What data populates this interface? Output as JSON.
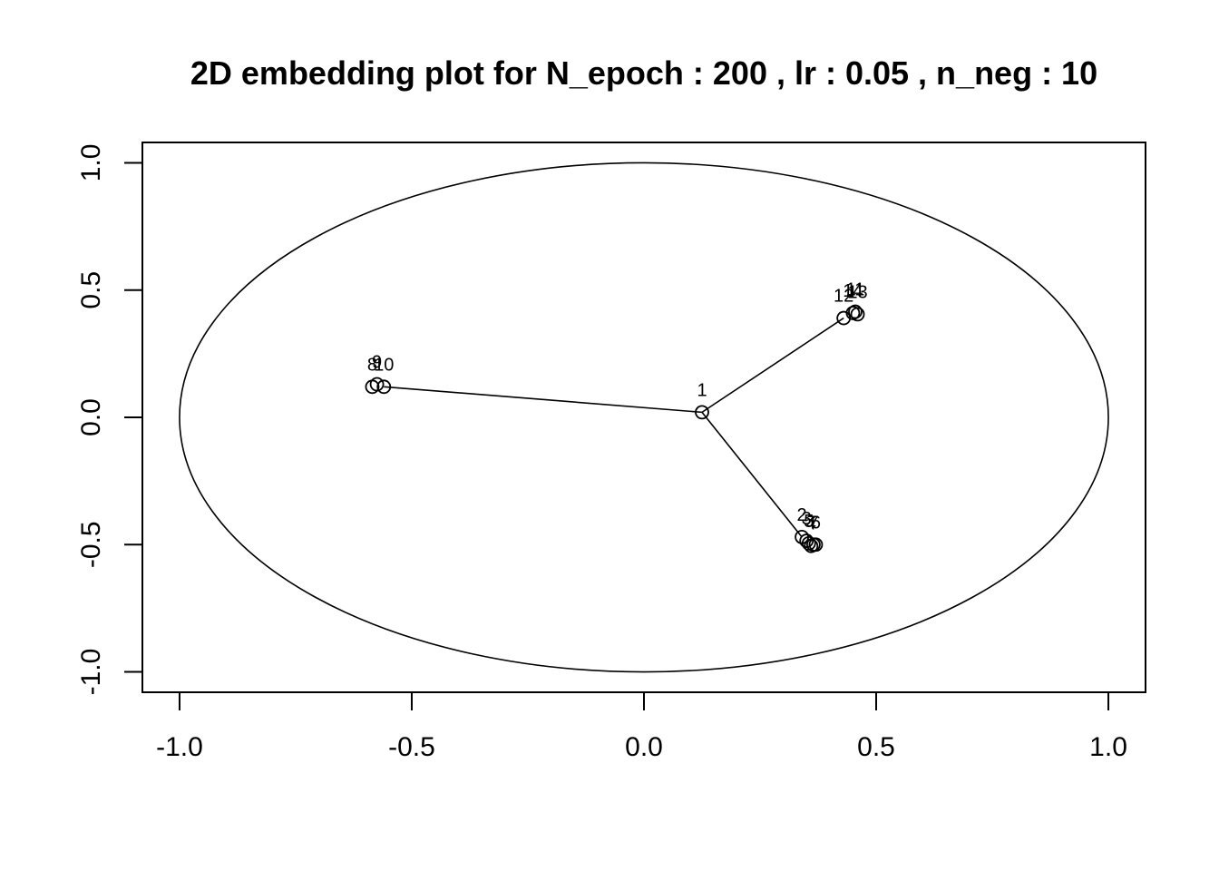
{
  "chart_data": {
    "type": "scatter",
    "title": "2D embedding plot for N_epoch : 200 , lr : 0.05 , n_neg : 10",
    "xlabel": "",
    "ylabel": "",
    "xlim": [
      -1.08,
      1.08
    ],
    "ylim": [
      -1.08,
      1.08
    ],
    "xticks": [
      -1.0,
      -0.5,
      0.0,
      0.5,
      1.0
    ],
    "xtick_labels": [
      "-1.0",
      "-0.5",
      "0.0",
      "0.5",
      "1.0"
    ],
    "yticks": [
      -1.0,
      -0.5,
      0.0,
      0.5,
      1.0
    ],
    "ytick_labels": [
      "-1.0",
      "-0.5",
      "0.0",
      "0.5",
      "1.0"
    ],
    "grid": false,
    "unit_circle": true,
    "points": [
      {
        "label": "1",
        "x": 0.125,
        "y": 0.02
      },
      {
        "label": "2",
        "x": 0.34,
        "y": -0.47
      },
      {
        "label": "3",
        "x": 0.35,
        "y": -0.485
      },
      {
        "label": "4",
        "x": 0.36,
        "y": -0.505
      },
      {
        "label": "5",
        "x": 0.355,
        "y": -0.495
      },
      {
        "label": "6",
        "x": 0.37,
        "y": -0.5
      },
      {
        "label": "7",
        "x": 0.365,
        "y": -0.5
      },
      {
        "label": "8",
        "x": -0.585,
        "y": 0.12
      },
      {
        "label": "9",
        "x": -0.575,
        "y": 0.13
      },
      {
        "label": "10",
        "x": -0.56,
        "y": 0.12
      },
      {
        "label": "11",
        "x": 0.455,
        "y": 0.415
      },
      {
        "label": "12",
        "x": 0.43,
        "y": 0.39
      },
      {
        "label": "13",
        "x": 0.46,
        "y": 0.405
      },
      {
        "label": "14",
        "x": 0.45,
        "y": 0.41
      }
    ],
    "edges": [
      [
        "1",
        "10"
      ],
      [
        "1",
        "12"
      ],
      [
        "1",
        "2"
      ]
    ]
  }
}
